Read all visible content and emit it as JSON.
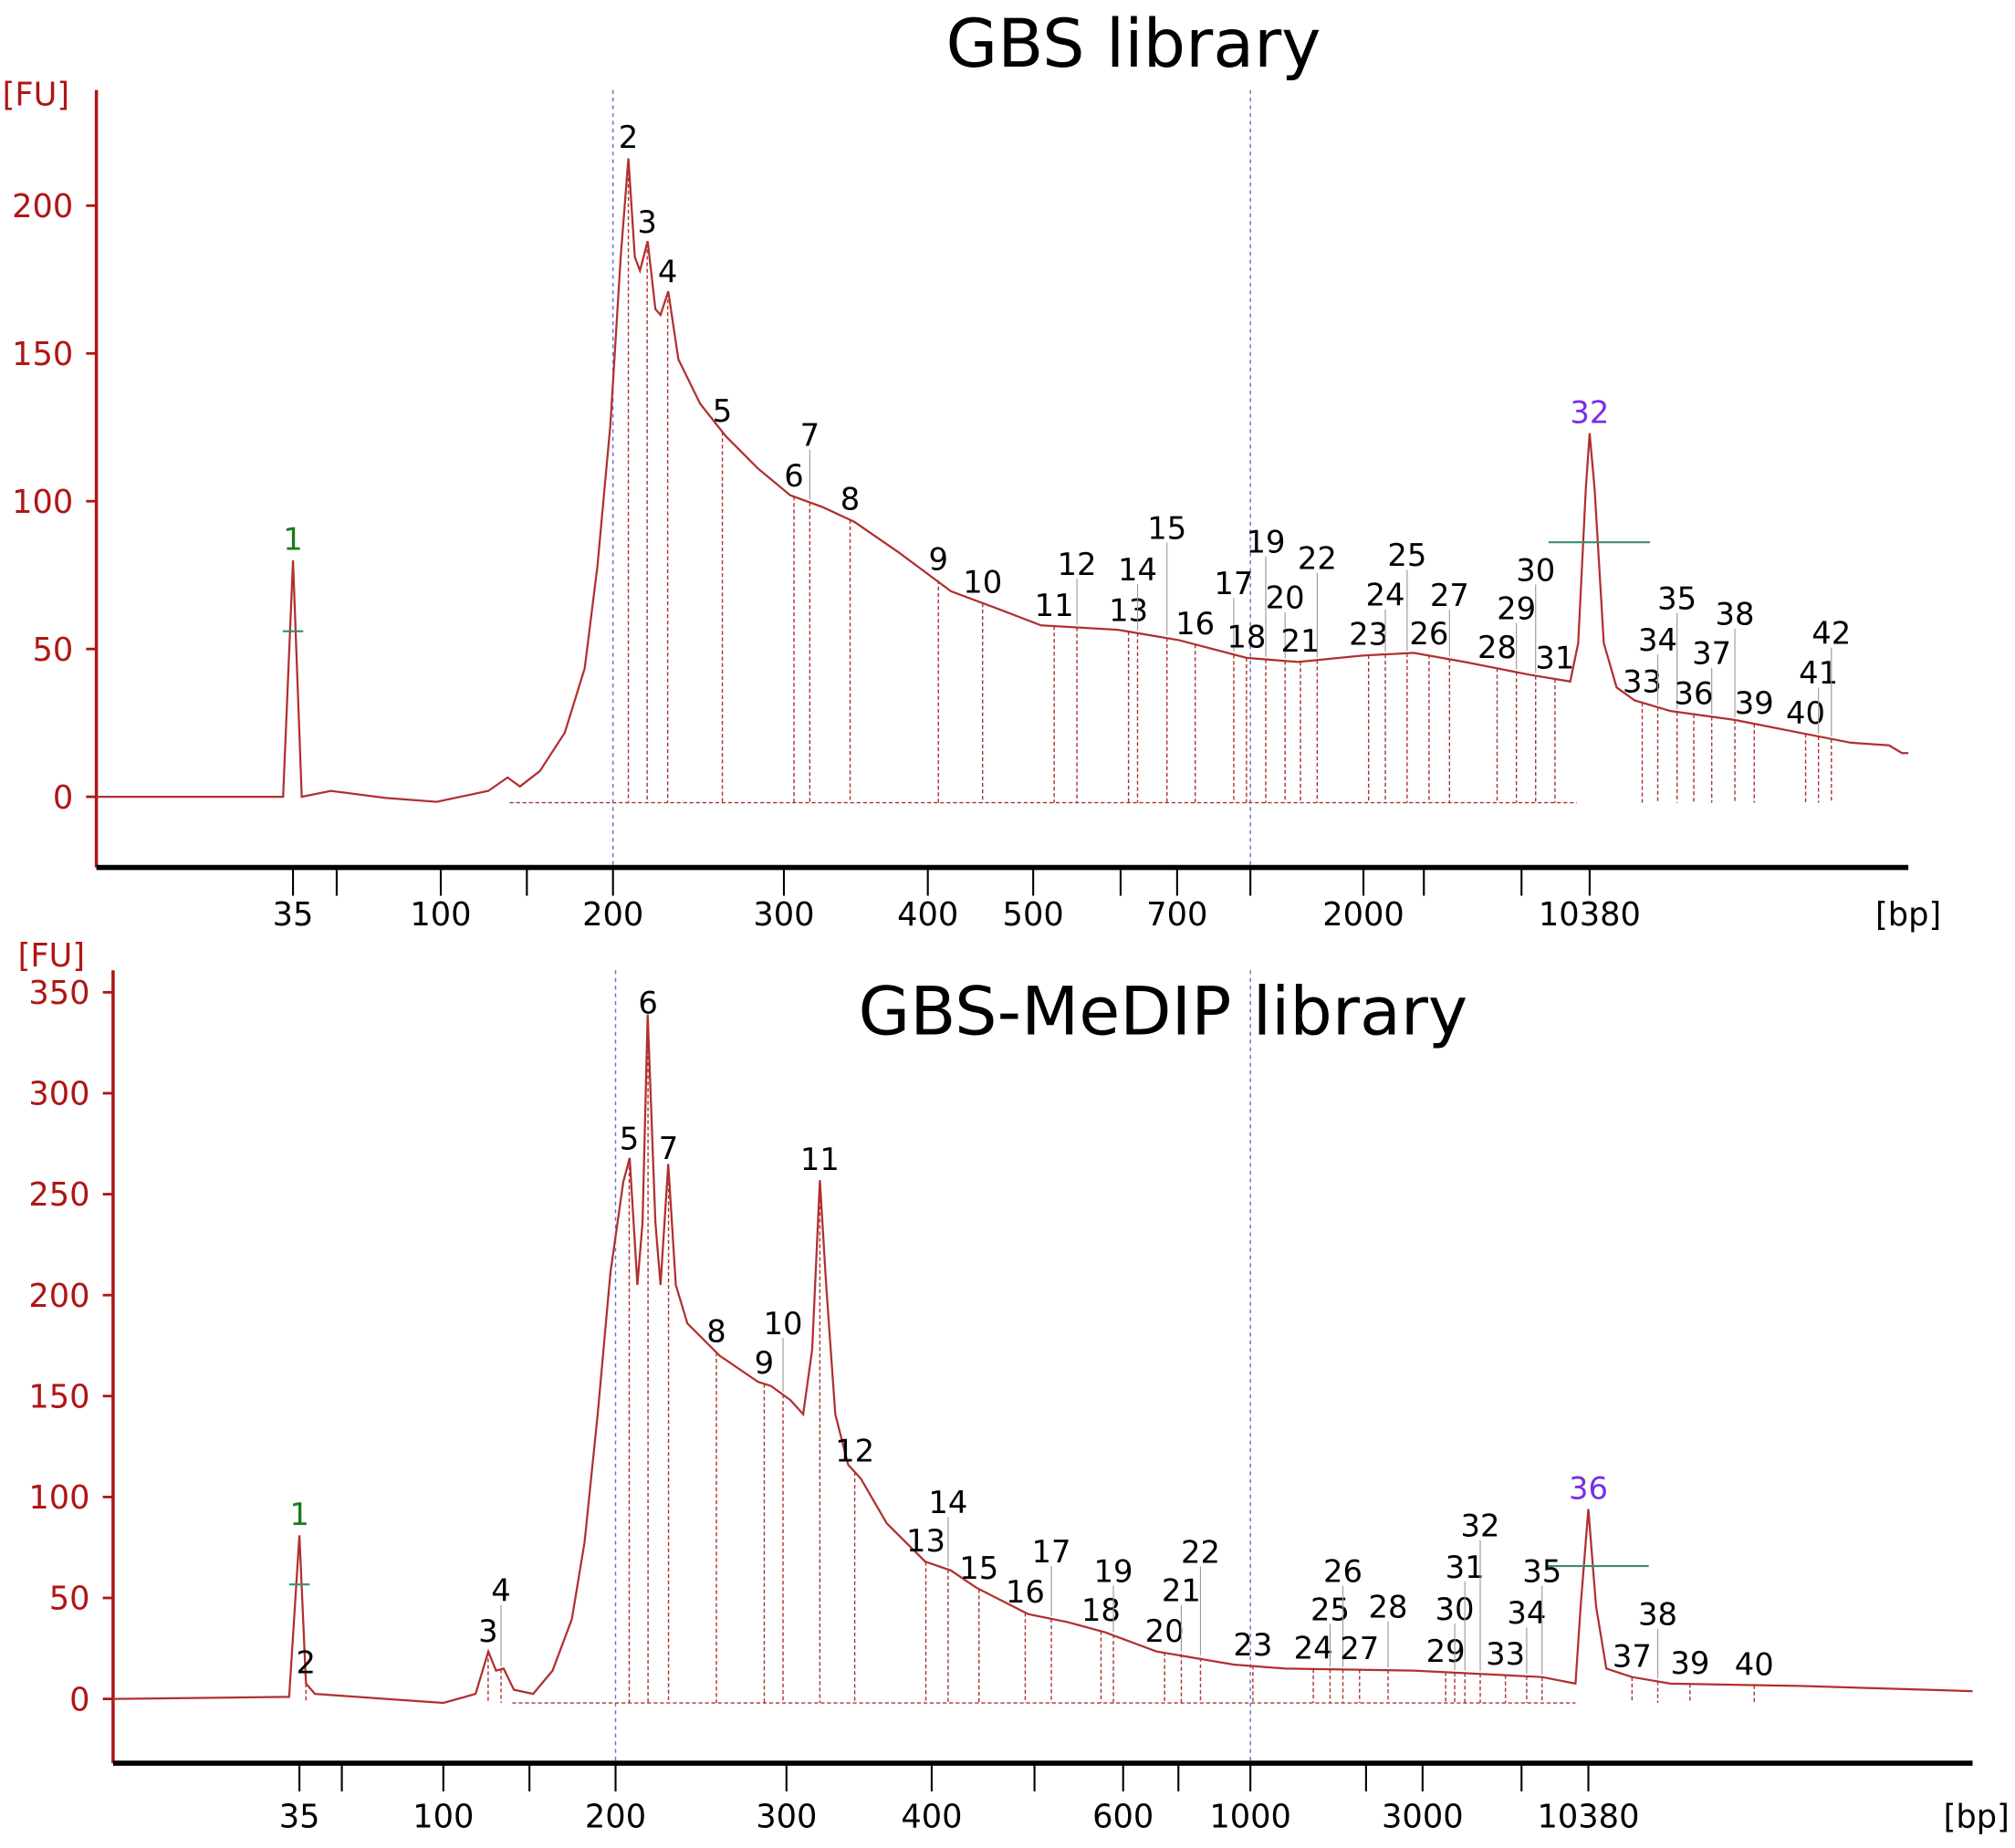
{
  "colors": {
    "axis_y": "#b01515",
    "trace": "#b03030",
    "lower_marker": "#1a7a1a",
    "upper_marker": "#7a2ee6",
    "peak_label": "#000000",
    "guide_line": "#6a6acd",
    "level_bar": "#3c8c6c"
  },
  "chart_data": [
    {
      "type": "line",
      "title": "GBS library",
      "ylabel": "[FU]",
      "xlabel": "[bp]",
      "ylim": [
        -23,
        240
      ],
      "xlim": [
        15,
        26200
      ],
      "yticks": [
        0,
        50,
        100,
        150,
        200
      ],
      "xticks": [
        35,
        50,
        100,
        150,
        200,
        300,
        400,
        500,
        600,
        700,
        1000,
        2000,
        3000,
        7000,
        10380
      ],
      "xtick_labels": [
        "35",
        "",
        "100",
        "",
        "200",
        "300",
        "400",
        "500",
        "",
        "700",
        "",
        "2000",
        "",
        "",
        "10380"
      ],
      "guide_lines_bp": [
        200,
        1000
      ],
      "trace": [
        [
          15,
          0
        ],
        [
          34,
          0
        ],
        [
          35,
          80
        ],
        [
          38,
          0
        ],
        [
          48,
          2
        ],
        [
          73.5,
          -0.4
        ],
        [
          98,
          -1.7
        ],
        [
          127.6,
          2
        ],
        [
          138.8,
          6.5
        ],
        [
          146,
          3.5
        ],
        [
          157.5,
          8.7
        ],
        [
          172,
          21.7
        ],
        [
          183.6,
          43.5
        ],
        [
          191,
          78
        ],
        [
          198.5,
          126
        ],
        [
          204.5,
          182.6
        ],
        [
          209,
          216
        ],
        [
          212.8,
          182.6
        ],
        [
          215.8,
          178
        ],
        [
          220.3,
          188
        ],
        [
          224.8,
          165
        ],
        [
          227.8,
          163
        ],
        [
          232.3,
          171
        ],
        [
          238.3,
          148
        ],
        [
          251,
          133
        ],
        [
          266,
          122
        ],
        [
          285,
          111
        ],
        [
          304.5,
          102
        ],
        [
          327,
          98
        ],
        [
          349,
          93
        ],
        [
          380,
          82.6
        ],
        [
          422,
          69.5
        ],
        [
          471,
          63
        ],
        [
          509,
          58
        ],
        [
          597,
          56.5
        ],
        [
          707,
          53
        ],
        [
          984,
          47
        ],
        [
          1420,
          45.6
        ],
        [
          1990,
          47.8
        ],
        [
          2830,
          48.7
        ],
        [
          4680,
          45.6
        ],
        [
          7380,
          41.3
        ],
        [
          9420,
          39
        ],
        [
          9810,
          52
        ],
        [
          10190,
          104
        ],
        [
          10380,
          123
        ],
        [
          10630,
          104
        ],
        [
          11080,
          52
        ],
        [
          11720,
          37
        ],
        [
          12610,
          32.6
        ],
        [
          14400,
          29
        ],
        [
          17590,
          26
        ],
        [
          20780,
          21.7
        ],
        [
          23330,
          18.3
        ],
        [
          25250,
          17.4
        ],
        [
          25880,
          14.8
        ],
        [
          26200,
          14.8
        ]
      ],
      "peaks": [
        {
          "label": "1",
          "bp": 35,
          "kind": "lower_marker"
        },
        {
          "label": "2",
          "bp": 209
        },
        {
          "label": "3",
          "bp": 220
        },
        {
          "label": "4",
          "bp": 232
        },
        {
          "label": "5",
          "bp": 264
        },
        {
          "label": "6",
          "bp": 307
        },
        {
          "label": "7",
          "bp": 318
        },
        {
          "label": "8",
          "bp": 346
        },
        {
          "label": "9",
          "bp": 410
        },
        {
          "label": "10",
          "bp": 452
        },
        {
          "label": "11",
          "bp": 524
        },
        {
          "label": "12",
          "bp": 550
        },
        {
          "label": "13",
          "bp": 614
        },
        {
          "label": "14",
          "bp": 630
        },
        {
          "label": "15",
          "bp": 682
        },
        {
          "label": "16",
          "bp": 774
        },
        {
          "label": "17",
          "bp": 932
        },
        {
          "label": "18",
          "bp": 984
        },
        {
          "label": "19",
          "bp": 1136
        },
        {
          "label": "20",
          "bp": 1307
        },
        {
          "label": "21",
          "bp": 1443
        },
        {
          "label": "22",
          "bp": 1591
        },
        {
          "label": "23",
          "bp": 2085
        },
        {
          "label": "24",
          "bp": 2362
        },
        {
          "label": "25",
          "bp": 2723
        },
        {
          "label": "26",
          "bp": 3210
        },
        {
          "label": "27",
          "bp": 4050
        },
        {
          "label": "28",
          "bp": 6000
        },
        {
          "label": "29",
          "bp": 6790
        },
        {
          "label": "30",
          "bp": 7700
        },
        {
          "label": "31",
          "bp": 8660
        },
        {
          "label": "32",
          "bp": 10380,
          "kind": "upper_marker"
        },
        {
          "label": "33",
          "bp": 12990
        },
        {
          "label": "34",
          "bp": 13760
        },
        {
          "label": "35",
          "bp": 14720
        },
        {
          "label": "36",
          "bp": 15550
        },
        {
          "label": "37",
          "bp": 16440
        },
        {
          "label": "38",
          "bp": 17590
        },
        {
          "label": "39",
          "bp": 18550
        },
        {
          "label": "40",
          "bp": 21100
        },
        {
          "label": "41",
          "bp": 21740
        },
        {
          "label": "42",
          "bp": 22380
        }
      ]
    },
    {
      "type": "line",
      "title": "GBS-MeDIP library",
      "ylabel": "[FU]",
      "xlabel": "[bp]",
      "ylim": [
        -32,
        360
      ],
      "xlim": [
        15,
        29815
      ],
      "yticks": [
        0,
        50,
        100,
        150,
        200,
        250,
        300,
        350
      ],
      "xticks": [
        35,
        50,
        100,
        150,
        200,
        300,
        400,
        500,
        600,
        700,
        1000,
        2000,
        3000,
        7000,
        10380
      ],
      "xtick_labels": [
        "35",
        "",
        "100",
        "",
        "200",
        "300",
        "400",
        "",
        "600",
        "",
        "1000",
        "",
        "3000",
        "",
        "10380"
      ],
      "guide_lines_bp": [
        200,
        1000
      ],
      "trace": [
        [
          15,
          0
        ],
        [
          33.9,
          1
        ],
        [
          35,
          81
        ],
        [
          37.3,
          7.6
        ],
        [
          40.5,
          2.5
        ],
        [
          71.5,
          0
        ],
        [
          100,
          -2
        ],
        [
          118.7,
          2.5
        ],
        [
          126.1,
          23.5
        ],
        [
          130.6,
          14
        ],
        [
          135,
          15
        ],
        [
          141,
          4.5
        ],
        [
          152.2,
          2.5
        ],
        [
          163.4,
          14
        ],
        [
          174.6,
          39.5
        ],
        [
          182,
          77.7
        ],
        [
          189.6,
          141
        ],
        [
          197,
          211
        ],
        [
          204.5,
          256
        ],
        [
          208.3,
          268
        ],
        [
          212.8,
          205
        ],
        [
          215.8,
          236
        ],
        [
          218.8,
          339
        ],
        [
          223.3,
          236
        ],
        [
          226.3,
          205
        ],
        [
          230.8,
          265
        ],
        [
          235.3,
          205
        ],
        [
          242,
          186
        ],
        [
          260.9,
          170
        ],
        [
          283.5,
          157
        ],
        [
          291,
          155
        ],
        [
          302.7,
          148
        ],
        [
          311.5,
          141
        ],
        [
          317.7,
          173
        ],
        [
          323,
          257
        ],
        [
          327.4,
          204
        ],
        [
          333.6,
          141
        ],
        [
          342.5,
          116
        ],
        [
          351.3,
          109
        ],
        [
          369,
          87
        ],
        [
          395.6,
          68
        ],
        [
          418.8,
          63.6
        ],
        [
          443.8,
          55
        ],
        [
          493.8,
          42
        ],
        [
          537.7,
          38
        ],
        [
          579.7,
          33
        ],
        [
          660.5,
          23.5
        ],
        [
          930,
          17
        ],
        [
          1300,
          15
        ],
        [
          2840,
          14
        ],
        [
          8040,
          10.8
        ],
        [
          9730,
          7.6
        ],
        [
          9990,
          45.8
        ],
        [
          10380,
          94
        ],
        [
          10770,
          45.8
        ],
        [
          11290,
          15
        ],
        [
          12590,
          10.8
        ],
        [
          14540,
          7.6
        ],
        [
          21040,
          6.4
        ],
        [
          27540,
          4.5
        ],
        [
          29815,
          3.8
        ]
      ],
      "peaks": [
        {
          "label": "1",
          "bp": 35,
          "kind": "lower_marker"
        },
        {
          "label": "2",
          "bp": 37.3
        },
        {
          "label": "3",
          "bp": 126
        },
        {
          "label": "4",
          "bp": 133.5
        },
        {
          "label": "5",
          "bp": 208
        },
        {
          "label": "6",
          "bp": 219
        },
        {
          "label": "7",
          "bp": 231
        },
        {
          "label": "8",
          "bp": 259
        },
        {
          "label": "9",
          "bp": 287
        },
        {
          "label": "10",
          "bp": 298
        },
        {
          "label": "11",
          "bp": 323
        },
        {
          "label": "12",
          "bp": 347
        },
        {
          "label": "13",
          "bp": 396
        },
        {
          "label": "14",
          "bp": 416
        },
        {
          "label": "15",
          "bp": 446
        },
        {
          "label": "16",
          "bp": 491
        },
        {
          "label": "17",
          "bp": 519
        },
        {
          "label": "18",
          "bp": 575
        },
        {
          "label": "19",
          "bp": 589
        },
        {
          "label": "20",
          "bp": 675
        },
        {
          "label": "21",
          "bp": 712
        },
        {
          "label": "22",
          "bp": 792
        },
        {
          "label": "23",
          "bp": 1022
        },
        {
          "label": "24",
          "bp": 1544
        },
        {
          "label": "25",
          "bp": 1689
        },
        {
          "label": "26",
          "bp": 1800
        },
        {
          "label": "27",
          "bp": 1944
        },
        {
          "label": "28",
          "bp": 2390
        },
        {
          "label": "29",
          "bp": 3935
        },
        {
          "label": "30",
          "bp": 4300
        },
        {
          "label": "31",
          "bp": 4710
        },
        {
          "label": "32",
          "bp": 5330
        },
        {
          "label": "33",
          "bp": 6350
        },
        {
          "label": "34",
          "bp": 7260
        },
        {
          "label": "35",
          "bp": 8040
        },
        {
          "label": "36",
          "bp": 10380,
          "kind": "upper_marker"
        },
        {
          "label": "37",
          "bp": 12590
        },
        {
          "label": "38",
          "bp": 13890
        },
        {
          "label": "39",
          "bp": 15520
        },
        {
          "label": "40",
          "bp": 18770
        }
      ]
    }
  ]
}
